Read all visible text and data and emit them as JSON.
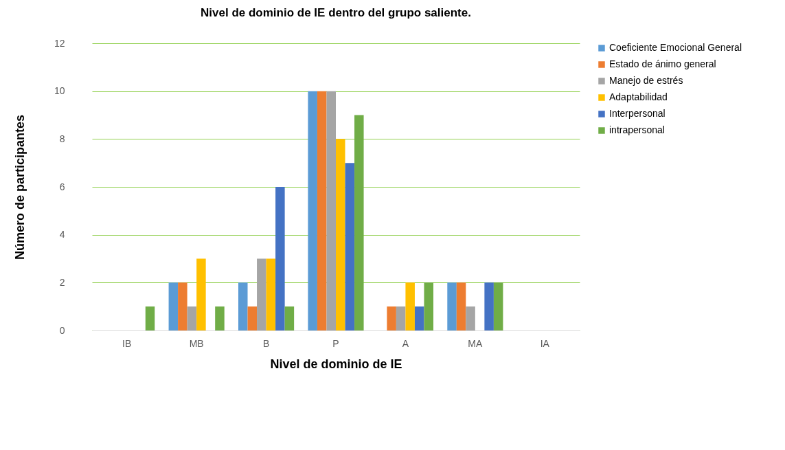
{
  "chart_data": {
    "type": "bar",
    "title": "Nivel de dominio de IE dentro del grupo saliente.",
    "xlabel": "Nivel de dominio de IE",
    "ylabel": "Número de participantes",
    "categories": [
      "IB",
      "MB",
      "B",
      "P",
      "A",
      "MA",
      "IA"
    ],
    "series": [
      {
        "name": "Coeficiente Emocional General",
        "color": "#5b9bd5",
        "values": [
          0,
          2,
          2,
          10,
          0,
          2,
          0
        ]
      },
      {
        "name": "Estado de ánimo general",
        "color": "#ed7d31",
        "values": [
          0,
          2,
          1,
          10,
          1,
          2,
          0
        ]
      },
      {
        "name": "Manejo de estrés",
        "color": "#a5a5a5",
        "values": [
          0,
          1,
          3,
          10,
          1,
          1,
          0
        ]
      },
      {
        "name": "Adaptabilidad",
        "color": "#ffc000",
        "values": [
          0,
          3,
          3,
          8,
          2,
          0,
          0
        ]
      },
      {
        "name": "Interpersonal",
        "color": "#4472c4",
        "values": [
          0,
          0,
          6,
          7,
          1,
          2,
          0
        ]
      },
      {
        "name": "intrapersonal",
        "color": "#70ad47",
        "values": [
          1,
          1,
          1,
          9,
          2,
          2,
          0
        ]
      }
    ],
    "ylim": [
      0,
      12
    ],
    "yticks": [
      0,
      2,
      4,
      6,
      8,
      10,
      12
    ],
    "grid": "y",
    "legend": "right"
  }
}
